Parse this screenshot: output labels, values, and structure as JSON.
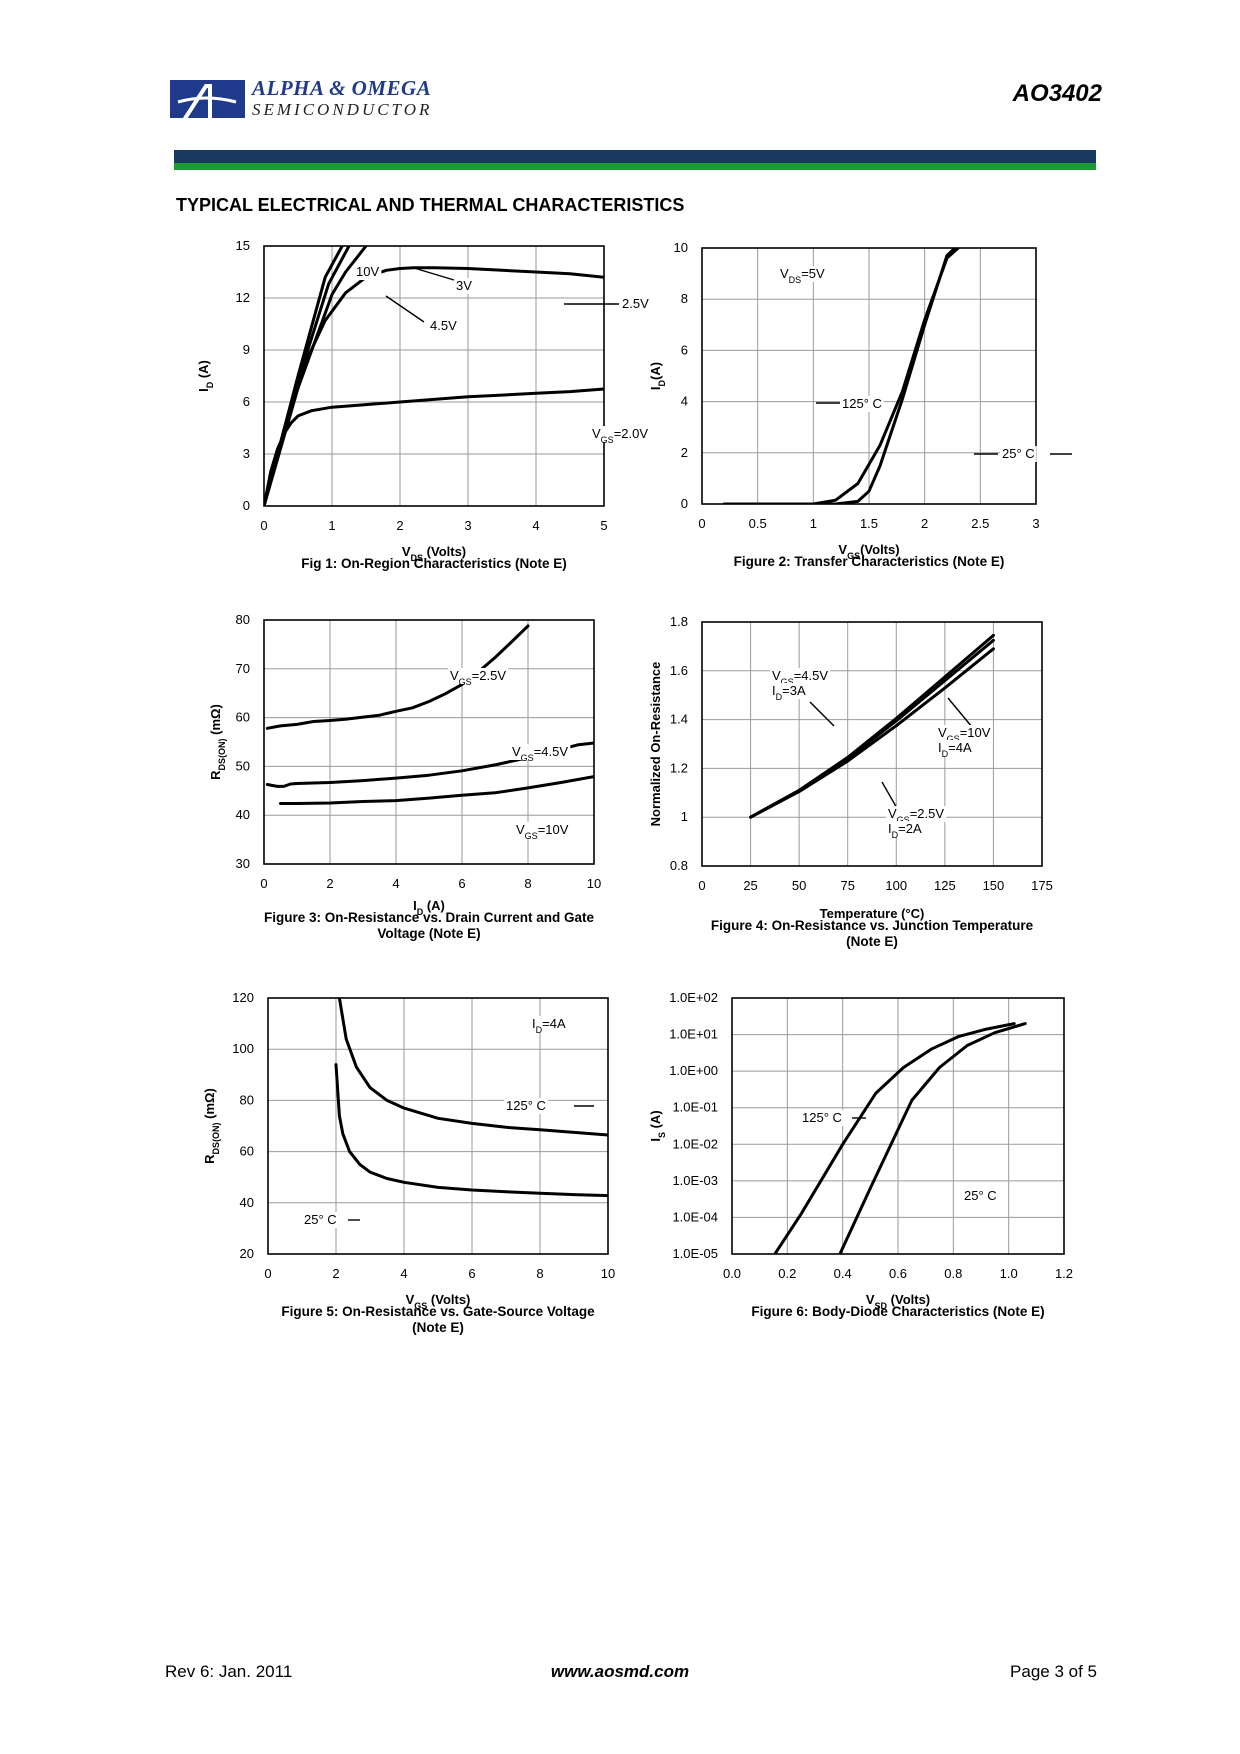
{
  "header": {
    "brand_name": "ALPHA & OMEGA",
    "brand_sub": "SEMICONDUCTOR",
    "part_number": "AO3402",
    "logo_color": "#1f3a8a",
    "bar_blue": "#17385f",
    "bar_green": "#1d9a34"
  },
  "section_title": "TYPICAL ELECTRICAL AND THERMAL CHARACTERISTICS",
  "footer": {
    "rev": "Rev 6: Jan. 2011",
    "url": "www.aosmd.com",
    "page": "Page 3 of 5"
  },
  "chart_data": [
    {
      "id": "fig1",
      "type": "line",
      "caption": [
        "Fig 1: On-Region Characteristics (Note E)"
      ],
      "xlabel": {
        "main": "V",
        "sub": "DS",
        "rest": " (Volts)"
      },
      "ylabel": {
        "main": "I",
        "sub": "D",
        "rest": " (A)"
      },
      "xlim": [
        0,
        5
      ],
      "ylim": [
        0,
        15
      ],
      "xticks": [
        0,
        1,
        2,
        3,
        4,
        5
      ],
      "xtick_labels": [
        "0",
        "1",
        "2",
        "3",
        "4",
        "5"
      ],
      "yticks": [
        0,
        3,
        6,
        9,
        12,
        15
      ],
      "ytick_labels": [
        "0",
        "3",
        "6",
        "9",
        "12",
        "15"
      ],
      "series": [
        {
          "name": "10V",
          "x": [
            0,
            0.5,
            0.9,
            1.15
          ],
          "y": [
            0,
            7.5,
            13.2,
            15
          ]
        },
        {
          "name": "4.5V",
          "x": [
            0,
            0.5,
            0.95,
            1.25
          ],
          "y": [
            0,
            7.2,
            12.8,
            15
          ]
        },
        {
          "name": "3V",
          "x": [
            0,
            0.5,
            1.0,
            1.2,
            1.5
          ],
          "y": [
            0,
            6.8,
            12.2,
            13.5,
            15
          ]
        },
        {
          "name": "2.5V",
          "x": [
            0,
            0.3,
            0.6,
            0.9,
            1.2,
            1.5,
            1.8,
            2.0,
            2.2,
            2.5,
            3,
            3.5,
            4,
            4.5,
            5
          ],
          "y": [
            0,
            4.5,
            8.2,
            10.7,
            12.3,
            13.2,
            13.6,
            13.7,
            13.75,
            13.75,
            13.7,
            13.6,
            13.5,
            13.4,
            13.2
          ]
        },
        {
          "name": "VGS=2.0V",
          "x": [
            0,
            0.1,
            0.2,
            0.3,
            0.4,
            0.5,
            0.7,
            1.0,
            1.5,
            2,
            2.5,
            3,
            3.5,
            4,
            4.5,
            5
          ],
          "y": [
            0,
            2.0,
            3.3,
            4.2,
            4.8,
            5.2,
            5.5,
            5.7,
            5.85,
            6.0,
            6.15,
            6.3,
            6.4,
            6.5,
            6.6,
            6.75
          ]
        }
      ],
      "annotations": [
        {
          "label": "10V",
          "sub": "",
          "rest": ""
        },
        {
          "label": "3V",
          "sub": "",
          "rest": ""
        },
        {
          "label": "4.5V",
          "sub": "",
          "rest": ""
        },
        {
          "label": "2.5V",
          "sub": "",
          "rest": ""
        },
        {
          "label": "V",
          "sub": "GS",
          "rest": "=2.0V"
        }
      ]
    },
    {
      "id": "fig2",
      "type": "line",
      "caption": [
        "Figure 2: Transfer Characteristics (Note E)"
      ],
      "xlabel": {
        "main": "V",
        "sub": "GS",
        "rest": "(Volts)"
      },
      "ylabel": {
        "main": "I",
        "sub": "D",
        "rest": "(A)"
      },
      "xlim": [
        0,
        3
      ],
      "ylim": [
        0,
        10
      ],
      "xticks": [
        0,
        0.5,
        1,
        1.5,
        2,
        2.5,
        3
      ],
      "xtick_labels": [
        "0",
        "0.5",
        "1",
        "1.5",
        "2",
        "2.5",
        "3"
      ],
      "yticks": [
        0,
        2,
        4,
        6,
        8,
        10
      ],
      "ytick_labels": [
        "0",
        "2",
        "4",
        "6",
        "8",
        "10"
      ],
      "series": [
        {
          "name": "125° C",
          "x": [
            0.2,
            1.0,
            1.2,
            1.4,
            1.6,
            1.8,
            2.0,
            2.2,
            2.3
          ],
          "y": [
            0,
            0,
            0.15,
            0.8,
            2.3,
            4.4,
            7.2,
            9.6,
            10
          ]
        },
        {
          "name": "25° C",
          "x": [
            0.2,
            1.2,
            1.4,
            1.5,
            1.6,
            1.8,
            2.0,
            2.2,
            2.27
          ],
          "y": [
            0,
            0,
            0.1,
            0.5,
            1.5,
            4.1,
            7.0,
            9.7,
            10
          ]
        }
      ],
      "annotations": [
        {
          "label": "V",
          "sub": "DS",
          "rest": "=5V"
        },
        {
          "label": "125° C",
          "sub": "",
          "rest": ""
        },
        {
          "label": "25° C",
          "sub": "",
          "rest": ""
        }
      ]
    },
    {
      "id": "fig3",
      "type": "line",
      "caption": [
        "Figure 3: On-Resistance vs. Drain Current and Gate",
        "Voltage (Note E)"
      ],
      "xlabel": {
        "main": "I",
        "sub": "D",
        "rest": " (A)"
      },
      "ylabel": {
        "main": "R",
        "sub": "DS(ON)",
        "rest": " (mΩ)"
      },
      "xlim": [
        0,
        10
      ],
      "ylim": [
        30,
        80
      ],
      "xticks": [
        0,
        2,
        4,
        6,
        8,
        10
      ],
      "xtick_labels": [
        "0",
        "2",
        "4",
        "6",
        "8",
        "10"
      ],
      "yticks": [
        30,
        40,
        50,
        60,
        70,
        80
      ],
      "ytick_labels": [
        "30",
        "40",
        "50",
        "60",
        "70",
        "80"
      ],
      "series": [
        {
          "name": "VGS=2.5V",
          "x": [
            0.1,
            0.5,
            1,
            1.5,
            2,
            2.5,
            3,
            3.5,
            4,
            4.5,
            5,
            5.5,
            6,
            6.5,
            7,
            7.5,
            8
          ],
          "y": [
            57.8,
            58.3,
            58.6,
            59.2,
            59.4,
            59.7,
            60.1,
            60.5,
            61.3,
            62,
            63.3,
            64.9,
            66.8,
            69.4,
            72.3,
            75.5,
            78.8
          ]
        },
        {
          "name": "VGS=4.5V",
          "x": [
            0.1,
            0.4,
            0.6,
            0.8,
            1,
            2,
            3,
            4,
            5,
            6,
            7,
            8,
            9,
            9.5,
            10
          ],
          "y": [
            46.3,
            45.9,
            45.9,
            46.4,
            46.5,
            46.7,
            47.1,
            47.6,
            48.2,
            49.1,
            50.3,
            51.8,
            53.5,
            54.4,
            54.8
          ]
        },
        {
          "name": "VGS=10V",
          "x": [
            0.5,
            1,
            2,
            3,
            4,
            5,
            6,
            7,
            8,
            9,
            10
          ],
          "y": [
            42.4,
            42.4,
            42.5,
            42.8,
            43,
            43.5,
            44.1,
            44.6,
            45.6,
            46.7,
            47.9
          ]
        }
      ],
      "annotations": [
        {
          "label": "V",
          "sub": "GS",
          "rest": "=2.5V"
        },
        {
          "label": "V",
          "sub": "GS",
          "rest": "=4.5V"
        },
        {
          "label": "V",
          "sub": "GS",
          "rest": "=10V"
        }
      ]
    },
    {
      "id": "fig4",
      "type": "line",
      "caption": [
        "Figure 4: On-Resistance vs. Junction Temperature",
        "(Note E)"
      ],
      "xlabel": {
        "main": "Temperature (°C)",
        "sub": "",
        "rest": ""
      },
      "ylabel": {
        "main": "Normalized On-Resistance",
        "sub": "",
        "rest": ""
      },
      "xlim": [
        0,
        175
      ],
      "ylim": [
        0.8,
        1.8
      ],
      "xticks": [
        0,
        25,
        50,
        75,
        100,
        125,
        150,
        175
      ],
      "xtick_labels": [
        "0",
        "25",
        "50",
        "75",
        "100",
        "125",
        "150",
        "175"
      ],
      "yticks": [
        0.8,
        1.0,
        1.2,
        1.4,
        1.6,
        1.8
      ],
      "ytick_labels": [
        "0.8",
        "1",
        "1.2",
        "1.4",
        "1.6",
        "1.8"
      ],
      "series": [
        {
          "name": "VGS=4.5V ID=3A",
          "x": [
            25,
            50,
            75,
            100,
            125,
            150
          ],
          "y": [
            1.0,
            1.11,
            1.245,
            1.405,
            1.575,
            1.745
          ]
        },
        {
          "name": "VGS=10V ID=4A",
          "x": [
            25,
            50,
            75,
            100,
            125,
            150
          ],
          "y": [
            1.0,
            1.11,
            1.24,
            1.395,
            1.56,
            1.725
          ]
        },
        {
          "name": "VGS=2.5V ID=2A",
          "x": [
            25,
            50,
            75,
            100,
            125,
            150
          ],
          "y": [
            1.0,
            1.105,
            1.23,
            1.375,
            1.53,
            1.69
          ]
        }
      ],
      "annotations": [
        {
          "label": "V",
          "sub": "GS",
          "rest": "=4.5V"
        },
        {
          "label": "I",
          "sub": "D",
          "rest": "=3A"
        },
        {
          "label": "V",
          "sub": "GS",
          "rest": "=10V"
        },
        {
          "label": "I",
          "sub": "D",
          "rest": "=4A"
        },
        {
          "label": "V",
          "sub": "GS",
          "rest": "=2.5V"
        },
        {
          "label": "I",
          "sub": "D",
          "rest": "=2A"
        }
      ]
    },
    {
      "id": "fig5",
      "type": "line",
      "caption": [
        "Figure 5: On-Resistance vs. Gate-Source Voltage",
        "(Note E)"
      ],
      "xlabel": {
        "main": "V",
        "sub": "GS",
        "rest": " (Volts)"
      },
      "ylabel": {
        "main": "R",
        "sub": "DS(ON)",
        "rest": " (mΩ)"
      },
      "xlim": [
        0,
        10
      ],
      "ylim": [
        20,
        120
      ],
      "xticks": [
        0,
        2,
        4,
        6,
        8,
        10
      ],
      "xtick_labels": [
        "0",
        "2",
        "4",
        "6",
        "8",
        "10"
      ],
      "yticks": [
        20,
        40,
        60,
        80,
        100,
        120
      ],
      "ytick_labels": [
        "20",
        "40",
        "60",
        "80",
        "100",
        "120"
      ],
      "series": [
        {
          "name": "125° C",
          "x": [
            2.1,
            2.3,
            2.6,
            3.0,
            3.5,
            4,
            5,
            6,
            7,
            8,
            9,
            10
          ],
          "y": [
            120,
            104,
            93,
            85,
            80,
            77,
            73,
            71,
            69.5,
            68.5,
            67.5,
            66.5
          ]
        },
        {
          "name": "25° C",
          "x": [
            2.0,
            2.1,
            2.2,
            2.4,
            2.7,
            3.0,
            3.5,
            4,
            5,
            6,
            7,
            8,
            9,
            10
          ],
          "y": [
            94,
            74,
            67,
            60,
            55,
            52,
            49.5,
            48,
            46,
            45,
            44.3,
            43.7,
            43.2,
            42.8
          ]
        }
      ],
      "annotations": [
        {
          "label": "I",
          "sub": "D",
          "rest": "=4A"
        },
        {
          "label": "125° C",
          "sub": "",
          "rest": ""
        },
        {
          "label": "25° C",
          "sub": "",
          "rest": ""
        }
      ]
    },
    {
      "id": "fig6",
      "type": "line",
      "yscale": "log",
      "caption": [
        "Figure 6: Body-Diode Characteristics (Note E)"
      ],
      "xlabel": {
        "main": "V",
        "sub": "SD",
        "rest": " (Volts)"
      },
      "ylabel": {
        "main": "I",
        "sub": "S",
        "rest": " (A)"
      },
      "xlim": [
        0,
        1.2
      ],
      "ylim_exp": [
        -5,
        2
      ],
      "xticks": [
        0,
        0.2,
        0.4,
        0.6,
        0.8,
        1.0,
        1.2
      ],
      "xtick_labels": [
        "0.0",
        "0.2",
        "0.4",
        "0.6",
        "0.8",
        "1.0",
        "1.2"
      ],
      "yticks_exp": [
        -5,
        -4,
        -3,
        -2,
        -1,
        0,
        1,
        2
      ],
      "ytick_labels": [
        "1.0E-05",
        "1.0E-04",
        "1.0E-03",
        "1.0E-02",
        "1.0E-01",
        "1.0E+00",
        "1.0E+01",
        "1.0E+02"
      ],
      "series": [
        {
          "name": "125° C",
          "x": [
            0.155,
            0.25,
            0.4,
            0.52,
            0.62,
            0.72,
            0.82,
            0.92,
            1.02
          ],
          "y_exp": [
            -5,
            -3.9,
            -2.0,
            -0.6,
            0.1,
            0.6,
            0.95,
            1.15,
            1.3
          ]
        },
        {
          "name": "25° C",
          "x": [
            0.39,
            0.5,
            0.65,
            0.75,
            0.85,
            0.95,
            1.06
          ],
          "y_exp": [
            -5,
            -3.2,
            -0.8,
            0.1,
            0.7,
            1.05,
            1.3
          ]
        }
      ],
      "annotations": [
        {
          "label": "125° C",
          "sub": "",
          "rest": ""
        },
        {
          "label": "25° C",
          "sub": "",
          "rest": ""
        }
      ]
    }
  ]
}
